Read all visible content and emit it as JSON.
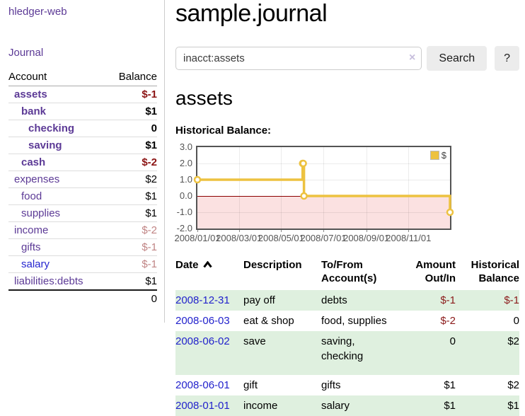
{
  "brand": "hledger-web",
  "sidebar": {
    "journal_link": "Journal",
    "header": {
      "account": "Account",
      "balance": "Balance"
    },
    "accounts": [
      {
        "name": "assets",
        "balance": "$-1"
      },
      {
        "name": "bank",
        "balance": "$1"
      },
      {
        "name": "checking",
        "balance": "0"
      },
      {
        "name": "saving",
        "balance": "$1"
      },
      {
        "name": "cash",
        "balance": "$-2"
      },
      {
        "name": "expenses",
        "balance": "$2"
      },
      {
        "name": "food",
        "balance": "$1"
      },
      {
        "name": "supplies",
        "balance": "$1"
      },
      {
        "name": "income",
        "balance": "$-2"
      },
      {
        "name": "gifts",
        "balance": "$-1"
      },
      {
        "name": "salary",
        "balance": "$-1"
      },
      {
        "name": "liabilities:debts",
        "balance": "$1"
      }
    ],
    "total": "0"
  },
  "main": {
    "title": "sample.journal",
    "search": {
      "value": "inacct:assets",
      "clear_icon": "×",
      "search_button": "Search",
      "help_button": "?"
    },
    "account_heading": "assets",
    "chart_title": "Historical Balance:"
  },
  "chart_data": {
    "type": "line",
    "step": true,
    "title": "Historical Balance",
    "legend": "$",
    "legend_position": "top-right",
    "grid": true,
    "line_color": "#edc240",
    "negative_region_color": "#fbe1e1",
    "zero_line_color": "#8b0000",
    "ylim": [
      -2,
      3
    ],
    "x_range": [
      "2008/01/01",
      "2008/12/31"
    ],
    "y_ticks": [
      {
        "v": 3,
        "label": "3.0"
      },
      {
        "v": 2,
        "label": "2.0"
      },
      {
        "v": 1,
        "label": "1.0"
      },
      {
        "v": 0,
        "label": "0.0"
      },
      {
        "v": -1,
        "label": "-1.0"
      },
      {
        "v": -2,
        "label": "-2.0"
      }
    ],
    "x_ticks": [
      {
        "date": "2008/01/01",
        "label": "2008/01/01"
      },
      {
        "date": "2008/03/01",
        "label": "2008/03/01"
      },
      {
        "date": "2008/05/01",
        "label": "2008/05/01"
      },
      {
        "date": "2008/07/01",
        "label": "2008/07/01"
      },
      {
        "date": "2008/09/01",
        "label": "2008/09/01"
      },
      {
        "date": "2008/11/01",
        "label": "2008/11/01"
      }
    ],
    "series": [
      {
        "name": "$",
        "points": [
          [
            "2008/01/01",
            1
          ],
          [
            "2008/06/01",
            2
          ],
          [
            "2008/06/02",
            2
          ],
          [
            "2008/06/03",
            0
          ],
          [
            "2008/12/31",
            -1
          ]
        ]
      }
    ]
  },
  "register": {
    "headers": {
      "date": "Date",
      "description": "Description",
      "accounts": "To/From Account(s)",
      "amount": "Amount Out/In",
      "historical": "Historical Balance"
    },
    "rows": [
      {
        "date": "2008-12-31",
        "description": "pay off",
        "accounts": "debts",
        "amount": "$-1",
        "balance": "$-1"
      },
      {
        "date": "2008-06-03",
        "description": "eat & shop",
        "accounts": "food, supplies",
        "amount": "$-2",
        "balance": "0"
      },
      {
        "date": "2008-06-02",
        "description": "save",
        "accounts": "saving, checking",
        "amount": "0",
        "balance": "$2"
      },
      {
        "date": "2008-06-01",
        "description": "gift",
        "accounts": "gifts",
        "amount": "$1",
        "balance": "$2"
      },
      {
        "date": "2008-01-01",
        "description": "income",
        "accounts": "salary",
        "amount": "$1",
        "balance": "$1"
      }
    ]
  }
}
